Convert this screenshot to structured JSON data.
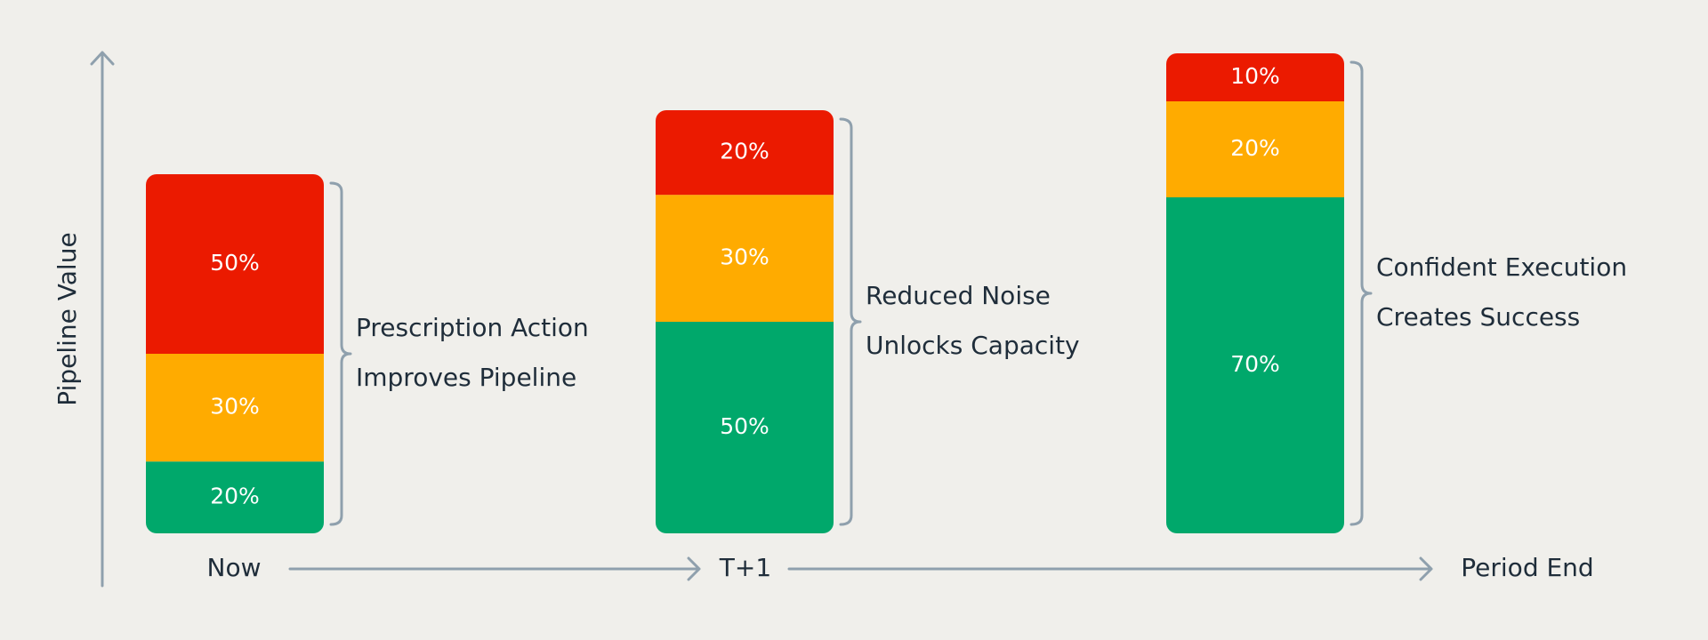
{
  "chart_data": {
    "type": "stacked_bar",
    "y_label": "Pipeline Value",
    "categories": [
      "Now",
      "T+1",
      "Period End"
    ],
    "series": [
      {
        "color": "#00a86b",
        "values": [
          20,
          50,
          70
        ],
        "value_labels": [
          "20%",
          "50%",
          "70%"
        ]
      },
      {
        "color": "#ffab00",
        "values": [
          30,
          30,
          20
        ],
        "value_labels": [
          "30%",
          "30%",
          "20%"
        ]
      },
      {
        "color": "#eb1a00",
        "values": [
          50,
          20,
          10
        ],
        "value_labels": [
          "50%",
          "20%",
          "10%"
        ]
      }
    ],
    "annotations": [
      [
        "Prescription Action",
        "Improves Pipeline"
      ],
      [
        "Reduced Noise",
        "Unlocks Capacity"
      ],
      [
        "Confident Execution",
        "Creates Success"
      ]
    ]
  }
}
